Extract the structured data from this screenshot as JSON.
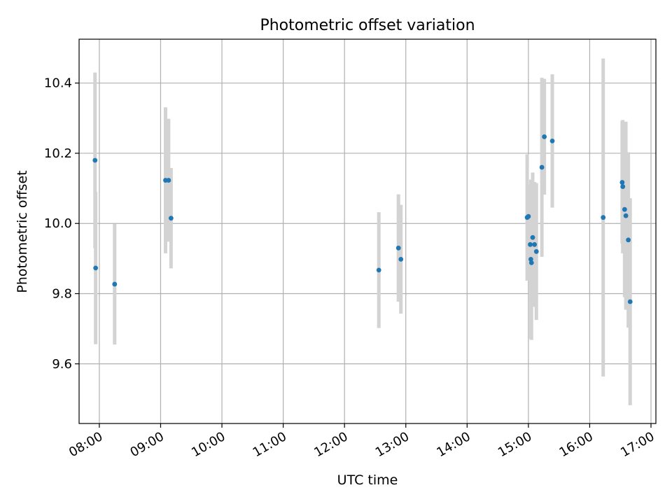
{
  "chart_data": {
    "type": "scatter",
    "title": "Photometric offset variation",
    "xlabel": "UTC time",
    "ylabel": "Photometric offset",
    "xlim": [
      7.67,
      17.08
    ],
    "ylim": [
      9.43,
      10.525
    ],
    "grid": true,
    "x_ticks": [
      {
        "value": 8,
        "label": "08:00"
      },
      {
        "value": 9,
        "label": "09:00"
      },
      {
        "value": 10,
        "label": "10:00"
      },
      {
        "value": 11,
        "label": "11:00"
      },
      {
        "value": 12,
        "label": "12:00"
      },
      {
        "value": 13,
        "label": "13:00"
      },
      {
        "value": 14,
        "label": "14:00"
      },
      {
        "value": 15,
        "label": "15:00"
      },
      {
        "value": 16,
        "label": "16:00"
      },
      {
        "value": 17,
        "label": "17:00"
      }
    ],
    "y_ticks": [
      {
        "value": 9.6,
        "label": "9.6"
      },
      {
        "value": 9.8,
        "label": "9.8"
      },
      {
        "value": 10.0,
        "label": "10.0"
      },
      {
        "value": 10.2,
        "label": "10.2"
      },
      {
        "value": 10.4,
        "label": "10.4"
      }
    ],
    "colors": {
      "point": "#1f77b4",
      "errorbar": "#d3d3d3",
      "grid": "#b0b0b0",
      "axes": "#000000"
    },
    "series": [
      {
        "name": "offset",
        "points": [
          {
            "x": 7.93,
            "y": 10.18,
            "err": 0.25
          },
          {
            "x": 7.94,
            "y": 9.873,
            "err": 0.217
          },
          {
            "x": 8.25,
            "y": 9.827,
            "err": 0.172
          },
          {
            "x": 9.08,
            "y": 10.123,
            "err": 0.208
          },
          {
            "x": 9.13,
            "y": 10.123,
            "err": 0.175
          },
          {
            "x": 9.17,
            "y": 10.015,
            "err": 0.143
          },
          {
            "x": 12.56,
            "y": 9.867,
            "err": 0.165
          },
          {
            "x": 12.88,
            "y": 9.93,
            "err": 0.153
          },
          {
            "x": 12.92,
            "y": 9.898,
            "err": 0.155
          },
          {
            "x": 14.98,
            "y": 10.017,
            "err": 0.18
          },
          {
            "x": 15.0,
            "y": 10.02,
            "err": 0.087
          },
          {
            "x": 15.03,
            "y": 9.94,
            "err": 0.17
          },
          {
            "x": 15.04,
            "y": 9.898,
            "err": 0.227
          },
          {
            "x": 15.05,
            "y": 9.888,
            "err": 0.22
          },
          {
            "x": 15.07,
            "y": 9.96,
            "err": 0.185
          },
          {
            "x": 15.1,
            "y": 9.94,
            "err": 0.178
          },
          {
            "x": 15.13,
            "y": 9.92,
            "err": 0.195
          },
          {
            "x": 15.22,
            "y": 10.16,
            "err": 0.255
          },
          {
            "x": 15.26,
            "y": 10.247,
            "err": 0.165
          },
          {
            "x": 15.39,
            "y": 10.235,
            "err": 0.19
          },
          {
            "x": 16.22,
            "y": 10.017,
            "err": 0.453
          },
          {
            "x": 16.53,
            "y": 10.117,
            "err": 0.175
          },
          {
            "x": 16.54,
            "y": 10.105,
            "err": 0.19
          },
          {
            "x": 16.57,
            "y": 10.04,
            "err": 0.25
          },
          {
            "x": 16.59,
            "y": 10.022,
            "err": 0.268
          },
          {
            "x": 16.63,
            "y": 9.953,
            "err": 0.25
          },
          {
            "x": 16.66,
            "y": 9.777,
            "err": 0.295
          }
        ]
      }
    ]
  }
}
